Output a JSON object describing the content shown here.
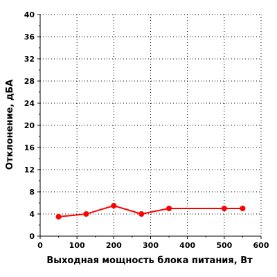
{
  "chart_data": {
    "type": "line",
    "title": "",
    "xlabel": "Выходная мощность блока питания, Вт",
    "ylabel": "Отклонение, дБА",
    "xlim": [
      0,
      600
    ],
    "ylim": [
      0,
      40
    ],
    "x_ticks": [
      "0",
      "100",
      "200",
      "300",
      "400",
      "500",
      "600"
    ],
    "y_ticks": [
      "0",
      "4",
      "8",
      "12",
      "16",
      "20",
      "24",
      "28",
      "32",
      "36",
      "40"
    ],
    "grid": true,
    "legend": "none",
    "series": [
      {
        "color": "#ff0000",
        "x": [
          50,
          125,
          200,
          275,
          350,
          500,
          550
        ],
        "y": [
          3.5,
          4.0,
          5.5,
          4.0,
          5.0,
          5.0,
          5.0
        ]
      }
    ]
  }
}
